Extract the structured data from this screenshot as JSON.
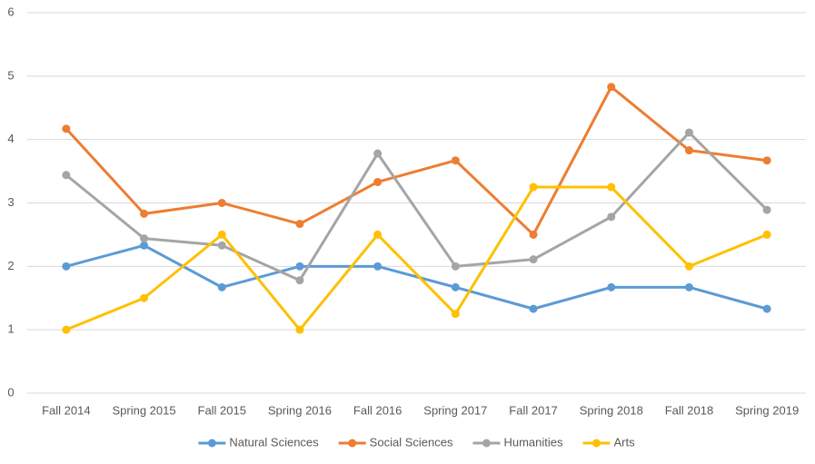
{
  "chart_data": {
    "type": "line",
    "categories": [
      "Fall 2014",
      "Spring 2015",
      "Fall 2015",
      "Spring 2016",
      "Fall 2016",
      "Spring 2017",
      "Fall 2017",
      "Spring 2018",
      "Fall 2018",
      "Spring 2019"
    ],
    "series": [
      {
        "name": "Natural Sciences",
        "color": "#5b9bd5",
        "values": [
          2,
          2.33,
          1.67,
          2,
          2,
          1.67,
          1.33,
          1.67,
          1.67,
          1.33
        ]
      },
      {
        "name": "Social Sciences",
        "color": "#ed7d31",
        "values": [
          4.17,
          2.83,
          3,
          2.67,
          3.33,
          3.67,
          2.5,
          4.83,
          3.83,
          3.67
        ]
      },
      {
        "name": "Humanities",
        "color": "#a5a5a5",
        "values": [
          3.44,
          2.44,
          2.33,
          1.78,
          3.78,
          2,
          2.11,
          2.78,
          4.11,
          2.89
        ]
      },
      {
        "name": "Arts",
        "color": "#ffc000",
        "values": [
          1,
          1.5,
          2.5,
          1,
          2.5,
          1.25,
          3.25,
          3.25,
          2,
          2.5
        ]
      }
    ],
    "ylim": [
      0,
      6
    ],
    "yticks": [
      0,
      1,
      2,
      3,
      4,
      5,
      6
    ],
    "grid": true,
    "legend": "bottom"
  }
}
